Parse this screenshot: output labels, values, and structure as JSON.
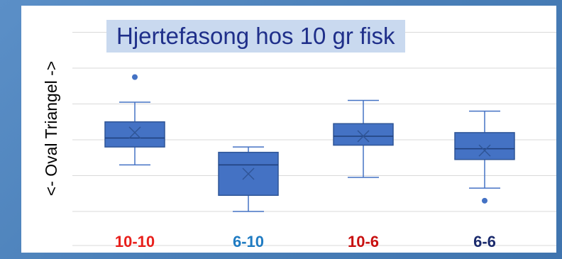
{
  "chart_data": {
    "type": "box",
    "title": "Hjertefasong hos 10 gr fisk",
    "ylabel": "<- Oval  Triangel ->",
    "xlabel": "",
    "ylim": [
      0,
      5
    ],
    "gridlines": [
      0,
      1,
      2,
      3,
      4,
      5
    ],
    "categories": [
      "10-10",
      "6-10",
      "10-6",
      "6-6"
    ],
    "category_colors": [
      "#e8201c",
      "#1f7bc2",
      "#c81010",
      "#1a2a6c"
    ],
    "series": [
      {
        "min": 1.3,
        "q1": 1.8,
        "median": 2.05,
        "q3": 2.5,
        "max": 3.05,
        "mean": 2.2,
        "outliers": [
          3.75
        ]
      },
      {
        "min": 0.0,
        "q1": 0.45,
        "median": 1.3,
        "q3": 1.65,
        "max": 1.8,
        "mean": 1.05,
        "outliers": []
      },
      {
        "min": 0.95,
        "q1": 1.85,
        "median": 2.1,
        "q3": 2.45,
        "max": 3.1,
        "mean": 2.1,
        "outliers": []
      },
      {
        "min": 0.65,
        "q1": 1.45,
        "median": 1.75,
        "q3": 2.2,
        "max": 2.8,
        "mean": 1.7,
        "outliers": 0.3
      }
    ],
    "grid": true,
    "legend": "none"
  }
}
